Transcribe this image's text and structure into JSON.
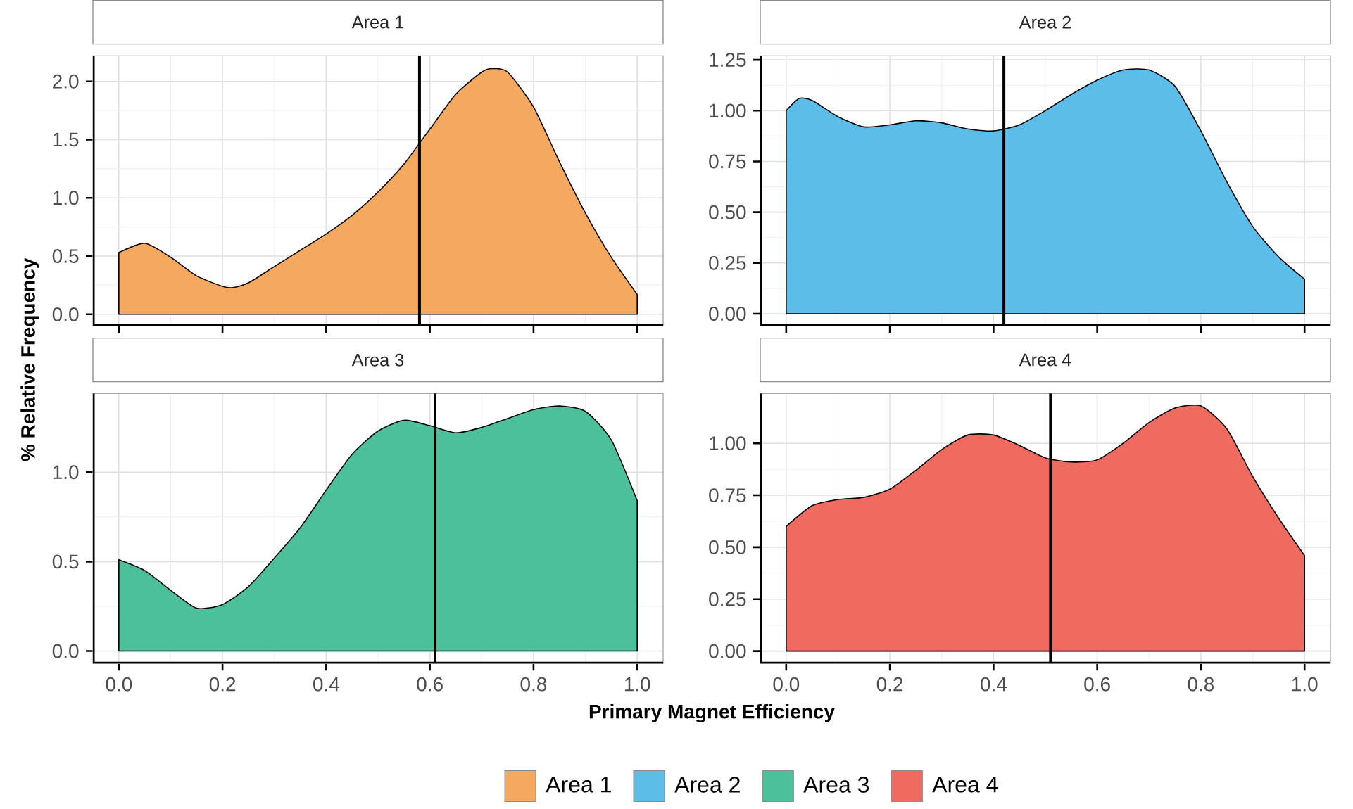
{
  "chart_data": [
    {
      "type": "area",
      "title": "Area 1",
      "ylabel": "% Relative Frequency",
      "legend": "bottom",
      "grid": true,
      "tick_labels": "y",
      "x": [
        0,
        0.05,
        0.1,
        0.15,
        0.2,
        0.22,
        0.25,
        0.3,
        0.35,
        0.4,
        0.45,
        0.5,
        0.55,
        0.6,
        0.65,
        0.7,
        0.72,
        0.75,
        0.8,
        0.85,
        0.9,
        0.95,
        1.0
      ],
      "series": [
        {
          "name": "Area 1",
          "color": "#f5a95f",
          "values": [
            0.53,
            0.61,
            0.49,
            0.33,
            0.24,
            0.23,
            0.27,
            0.41,
            0.55,
            0.69,
            0.85,
            1.05,
            1.29,
            1.59,
            1.89,
            2.08,
            2.11,
            2.08,
            1.78,
            1.31,
            0.87,
            0.49,
            0.17
          ]
        }
      ],
      "xlim": [
        -0.05,
        1.05
      ],
      "xticks": [
        {
          "value": 0,
          "label": null
        },
        {
          "value": 0.2,
          "label": null
        },
        {
          "value": 0.4,
          "label": null
        },
        {
          "value": 0.6,
          "label": null
        },
        {
          "value": 0.8,
          "label": null
        },
        {
          "value": 1,
          "label": null
        }
      ],
      "ylim": [
        -0.1,
        2.22
      ],
      "yticks": [
        {
          "value": 0,
          "label": "0.0"
        },
        0.5,
        {
          "value": 1,
          "label": "1.0"
        },
        1.5,
        {
          "value": 2,
          "label": "2.0"
        }
      ],
      "ref_lines": [
        {
          "axis": "x",
          "value": 0.58,
          "color": "#000000"
        }
      ]
    },
    {
      "type": "area",
      "title": "Area 2",
      "legend": "bottom",
      "grid": true,
      "tick_labels": "y",
      "x": [
        0,
        0.025,
        0.05,
        0.1,
        0.15,
        0.2,
        0.25,
        0.3,
        0.35,
        0.4,
        0.45,
        0.5,
        0.55,
        0.6,
        0.65,
        0.7,
        0.75,
        0.8,
        0.85,
        0.9,
        0.95,
        1.0
      ],
      "series": [
        {
          "name": "Area 2",
          "color": "#5dbde9",
          "values": [
            1.0,
            1.06,
            1.05,
            0.97,
            0.92,
            0.93,
            0.95,
            0.94,
            0.91,
            0.9,
            0.93,
            1.0,
            1.08,
            1.15,
            1.2,
            1.2,
            1.12,
            0.9,
            0.65,
            0.43,
            0.28,
            0.17
          ]
        }
      ],
      "xlim": [
        -0.05,
        1.05
      ],
      "xticks": [
        {
          "value": 0,
          "label": null
        },
        {
          "value": 0.2,
          "label": null
        },
        {
          "value": 0.4,
          "label": null
        },
        {
          "value": 0.6,
          "label": null
        },
        {
          "value": 0.8,
          "label": null
        },
        {
          "value": 1,
          "label": null
        }
      ],
      "ylim": [
        -0.06,
        1.27
      ],
      "yticks": [
        {
          "value": 0,
          "label": "0.00"
        },
        0.25,
        {
          "value": 0.5,
          "label": "0.50"
        },
        0.75,
        {
          "value": 1,
          "label": "1.00"
        },
        1.25
      ],
      "ref_lines": [
        {
          "axis": "x",
          "value": 0.42,
          "color": "#000000"
        }
      ]
    },
    {
      "type": "area",
      "title": "Area 3",
      "xlabel": "Primary Magnet Efficiency",
      "legend": "bottom",
      "grid": true,
      "x": [
        0,
        0.05,
        0.1,
        0.15,
        0.2,
        0.25,
        0.3,
        0.35,
        0.4,
        0.45,
        0.5,
        0.55,
        0.6,
        0.65,
        0.7,
        0.75,
        0.8,
        0.85,
        0.9,
        0.95,
        1.0
      ],
      "series": [
        {
          "name": "Area 3",
          "color": "#4cbf9b",
          "values": [
            0.51,
            0.45,
            0.34,
            0.24,
            0.26,
            0.36,
            0.52,
            0.69,
            0.9,
            1.1,
            1.23,
            1.29,
            1.26,
            1.22,
            1.25,
            1.3,
            1.35,
            1.37,
            1.34,
            1.18,
            0.84
          ]
        }
      ],
      "xlim": [
        -0.05,
        1.05
      ],
      "xticks": [
        {
          "value": 0,
          "label": "0.0"
        },
        0.2,
        0.4,
        0.6,
        0.8,
        {
          "value": 1,
          "label": "1.0"
        }
      ],
      "ylim": [
        -0.07,
        1.44
      ],
      "yticks": [
        {
          "value": 0,
          "label": "0.0"
        },
        0.5,
        {
          "value": 1,
          "label": "1.0"
        }
      ],
      "ref_lines": [
        {
          "axis": "x",
          "value": 0.61,
          "color": "#000000"
        }
      ]
    },
    {
      "type": "area",
      "title": "Area 4",
      "legend": "bottom",
      "grid": true,
      "x": [
        0,
        0.05,
        0.1,
        0.15,
        0.2,
        0.25,
        0.3,
        0.35,
        0.4,
        0.45,
        0.5,
        0.55,
        0.6,
        0.65,
        0.7,
        0.75,
        0.8,
        0.85,
        0.9,
        0.95,
        1.0
      ],
      "series": [
        {
          "name": "Area 4",
          "color": "#ef6b5f",
          "values": [
            0.6,
            0.7,
            0.73,
            0.74,
            0.78,
            0.87,
            0.97,
            1.04,
            1.04,
            0.99,
            0.93,
            0.91,
            0.92,
            1.0,
            1.1,
            1.17,
            1.18,
            1.07,
            0.84,
            0.64,
            0.46
          ]
        }
      ],
      "xlim": [
        -0.05,
        1.05
      ],
      "xticks": [
        {
          "value": 0,
          "label": "0.0"
        },
        0.2,
        0.4,
        0.6,
        0.8,
        {
          "value": 1,
          "label": "1.0"
        }
      ],
      "ylim": [
        -0.06,
        1.24
      ],
      "yticks": [
        {
          "value": 0,
          "label": "0.00"
        },
        0.25,
        {
          "value": 0.5,
          "label": "0.50"
        },
        0.75,
        {
          "value": 1,
          "label": "1.00"
        }
      ],
      "ref_lines": [
        {
          "axis": "x",
          "value": 0.51,
          "color": "#000000"
        }
      ]
    }
  ]
}
